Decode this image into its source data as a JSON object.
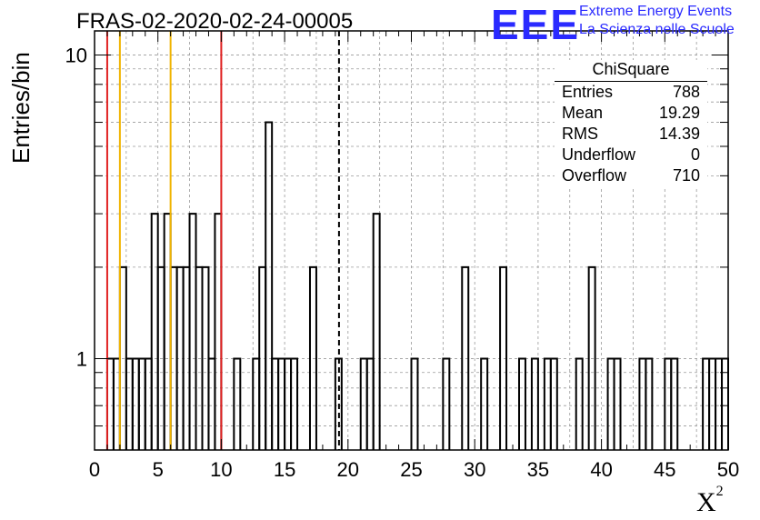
{
  "header": {
    "title": "FRAS-02-2020-02-24-00005",
    "logo_text": "EEE",
    "brand_line1": "Extreme Energy Events",
    "brand_line2": "La Scienza nelle Scuole",
    "brand_color": "#2a2aff"
  },
  "stats_box": {
    "title": "ChiSquare",
    "rows": [
      {
        "label": "Entries",
        "value": "788"
      },
      {
        "label": "Mean",
        "value": "19.29"
      },
      {
        "label": "RMS",
        "value": "14.39"
      },
      {
        "label": "Underflow",
        "value": "0"
      },
      {
        "label": "Overflow",
        "value": "710"
      }
    ]
  },
  "axes": {
    "ylabel": "Entries/bin",
    "xlabel_main": "X",
    "xlabel_sup": "2"
  },
  "chart_data": {
    "type": "histogram",
    "y_scale": "log",
    "xlim": [
      0,
      50
    ],
    "ylim": [
      0.5,
      12
    ],
    "grid": true,
    "bin_width": 0.5,
    "x_ticks": [
      0,
      5,
      10,
      15,
      20,
      25,
      30,
      35,
      40,
      45,
      50
    ],
    "y_ticks": [
      1,
      10
    ],
    "histogram_color": "#000000",
    "bins": [
      {
        "x": 1.0,
        "y": 1
      },
      {
        "x": 1.5,
        "y": 1
      },
      {
        "x": 2.0,
        "y": 2
      },
      {
        "x": 2.5,
        "y": 1
      },
      {
        "x": 3.0,
        "y": 1
      },
      {
        "x": 3.5,
        "y": 1
      },
      {
        "x": 4.0,
        "y": 1
      },
      {
        "x": 4.5,
        "y": 3
      },
      {
        "x": 5.0,
        "y": 2
      },
      {
        "x": 5.5,
        "y": 3
      },
      {
        "x": 6.0,
        "y": 2
      },
      {
        "x": 6.5,
        "y": 2
      },
      {
        "x": 7.0,
        "y": 2
      },
      {
        "x": 7.5,
        "y": 3
      },
      {
        "x": 8.0,
        "y": 2
      },
      {
        "x": 8.5,
        "y": 2
      },
      {
        "x": 9.0,
        "y": 1
      },
      {
        "x": 9.5,
        "y": 3
      },
      {
        "x": 11.0,
        "y": 1
      },
      {
        "x": 12.5,
        "y": 1
      },
      {
        "x": 13.0,
        "y": 2
      },
      {
        "x": 13.5,
        "y": 6
      },
      {
        "x": 14.0,
        "y": 1
      },
      {
        "x": 14.5,
        "y": 1
      },
      {
        "x": 15.0,
        "y": 1
      },
      {
        "x": 15.5,
        "y": 1
      },
      {
        "x": 17.0,
        "y": 2
      },
      {
        "x": 19.0,
        "y": 1
      },
      {
        "x": 21.0,
        "y": 1
      },
      {
        "x": 21.5,
        "y": 1
      },
      {
        "x": 22.0,
        "y": 3
      },
      {
        "x": 25.0,
        "y": 1
      },
      {
        "x": 27.5,
        "y": 1
      },
      {
        "x": 29.0,
        "y": 2
      },
      {
        "x": 30.5,
        "y": 1
      },
      {
        "x": 32.0,
        "y": 2
      },
      {
        "x": 33.5,
        "y": 1
      },
      {
        "x": 34.5,
        "y": 1
      },
      {
        "x": 35.5,
        "y": 1
      },
      {
        "x": 36.0,
        "y": 1
      },
      {
        "x": 38.0,
        "y": 1
      },
      {
        "x": 39.0,
        "y": 2
      },
      {
        "x": 40.5,
        "y": 1
      },
      {
        "x": 41.0,
        "y": 1
      },
      {
        "x": 43.0,
        "y": 1
      },
      {
        "x": 43.5,
        "y": 1
      },
      {
        "x": 45.0,
        "y": 1
      },
      {
        "x": 45.5,
        "y": 1
      },
      {
        "x": 48.0,
        "y": 1
      },
      {
        "x": 48.5,
        "y": 1
      },
      {
        "x": 49.0,
        "y": 1
      },
      {
        "x": 49.5,
        "y": 1
      }
    ],
    "vertical_markers": [
      {
        "x": 1,
        "color": "#e02020",
        "style": "solid"
      },
      {
        "x": 10,
        "color": "#e02020",
        "style": "solid"
      },
      {
        "x": 2,
        "color": "#f0b400",
        "style": "solid"
      },
      {
        "x": 6,
        "color": "#f0b400",
        "style": "solid"
      },
      {
        "x": 19.29,
        "color": "#000000",
        "style": "dashed"
      }
    ]
  }
}
